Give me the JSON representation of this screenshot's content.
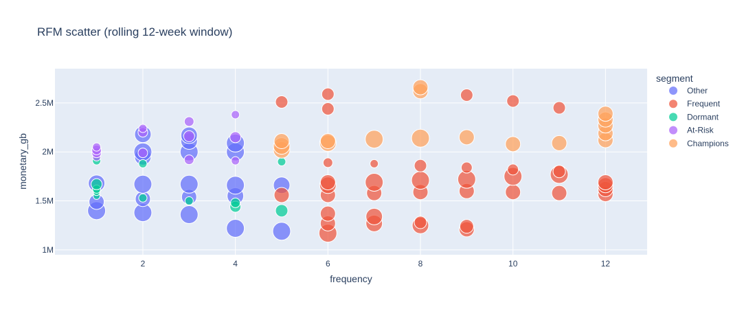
{
  "chart_data": {
    "type": "scatter",
    "title": "RFM scatter (rolling 12-week window)",
    "xlabel": "frequency",
    "ylabel": "monetary_gb",
    "xlim": [
      0.1,
      12.9
    ],
    "ylim": [
      950000,
      2850000
    ],
    "xticks": [
      2,
      4,
      6,
      8,
      10,
      12
    ],
    "xtick_labels": [
      "2",
      "4",
      "6",
      "8",
      "10",
      "12"
    ],
    "yticks": [
      1000000,
      1500000,
      2000000,
      2500000
    ],
    "ytick_labels": [
      "1M",
      "1.5M",
      "2M",
      "2.5M"
    ],
    "grid": true,
    "legend": {
      "title": "segment",
      "placement": "right"
    },
    "series": [
      {
        "name": "Other",
        "color": "#636efa",
        "points": [
          {
            "x": 1,
            "y": 1400000,
            "size": 13
          },
          {
            "x": 1,
            "y": 1490000,
            "size": 11
          },
          {
            "x": 1,
            "y": 1680000,
            "size": 12
          },
          {
            "x": 2,
            "y": 1380000,
            "size": 13
          },
          {
            "x": 2,
            "y": 1520000,
            "size": 11
          },
          {
            "x": 2,
            "y": 1670000,
            "size": 13
          },
          {
            "x": 2,
            "y": 1950000,
            "size": 12
          },
          {
            "x": 2,
            "y": 2000000,
            "size": 13
          },
          {
            "x": 2,
            "y": 2180000,
            "size": 12
          },
          {
            "x": 3,
            "y": 1360000,
            "size": 13
          },
          {
            "x": 3,
            "y": 1540000,
            "size": 11
          },
          {
            "x": 3,
            "y": 1670000,
            "size": 13
          },
          {
            "x": 3,
            "y": 2000000,
            "size": 13
          },
          {
            "x": 3,
            "y": 2110000,
            "size": 12
          },
          {
            "x": 3,
            "y": 2170000,
            "size": 12
          },
          {
            "x": 4,
            "y": 1220000,
            "size": 13
          },
          {
            "x": 4,
            "y": 1550000,
            "size": 12
          },
          {
            "x": 4,
            "y": 1660000,
            "size": 13
          },
          {
            "x": 4,
            "y": 2000000,
            "size": 13
          },
          {
            "x": 4,
            "y": 2090000,
            "size": 13
          },
          {
            "x": 5,
            "y": 1190000,
            "size": 13
          },
          {
            "x": 5,
            "y": 1660000,
            "size": 12
          }
        ]
      },
      {
        "name": "Frequent",
        "color": "#ef553b",
        "points": [
          {
            "x": 5,
            "y": 1560000,
            "size": 11
          },
          {
            "x": 5,
            "y": 2510000,
            "size": 9
          },
          {
            "x": 6,
            "y": 1170000,
            "size": 13
          },
          {
            "x": 6,
            "y": 1270000,
            "size": 11
          },
          {
            "x": 6,
            "y": 1370000,
            "size": 11
          },
          {
            "x": 6,
            "y": 1560000,
            "size": 11
          },
          {
            "x": 6,
            "y": 1660000,
            "size": 12
          },
          {
            "x": 6,
            "y": 1690000,
            "size": 11
          },
          {
            "x": 6,
            "y": 1890000,
            "size": 7
          },
          {
            "x": 6,
            "y": 2440000,
            "size": 9
          },
          {
            "x": 6,
            "y": 2590000,
            "size": 9
          },
          {
            "x": 7,
            "y": 1270000,
            "size": 12
          },
          {
            "x": 7,
            "y": 1340000,
            "size": 12
          },
          {
            "x": 7,
            "y": 1580000,
            "size": 11
          },
          {
            "x": 7,
            "y": 1690000,
            "size": 13
          },
          {
            "x": 7,
            "y": 1880000,
            "size": 6
          },
          {
            "x": 8,
            "y": 1250000,
            "size": 12
          },
          {
            "x": 8,
            "y": 1280000,
            "size": 9
          },
          {
            "x": 8,
            "y": 1590000,
            "size": 11
          },
          {
            "x": 8,
            "y": 1710000,
            "size": 13
          },
          {
            "x": 8,
            "y": 1860000,
            "size": 9
          },
          {
            "x": 9,
            "y": 1210000,
            "size": 11
          },
          {
            "x": 9,
            "y": 1240000,
            "size": 10
          },
          {
            "x": 9,
            "y": 1600000,
            "size": 11
          },
          {
            "x": 9,
            "y": 1720000,
            "size": 13
          },
          {
            "x": 9,
            "y": 1840000,
            "size": 8
          },
          {
            "x": 9,
            "y": 2580000,
            "size": 9
          },
          {
            "x": 10,
            "y": 1590000,
            "size": 11
          },
          {
            "x": 10,
            "y": 1750000,
            "size": 13
          },
          {
            "x": 10,
            "y": 1820000,
            "size": 8
          },
          {
            "x": 10,
            "y": 2520000,
            "size": 9
          },
          {
            "x": 11,
            "y": 1580000,
            "size": 11
          },
          {
            "x": 11,
            "y": 1770000,
            "size": 13
          },
          {
            "x": 11,
            "y": 1800000,
            "size": 9
          },
          {
            "x": 11,
            "y": 2450000,
            "size": 9
          },
          {
            "x": 12,
            "y": 1570000,
            "size": 11
          },
          {
            "x": 12,
            "y": 1620000,
            "size": 11
          },
          {
            "x": 12,
            "y": 1660000,
            "size": 11
          },
          {
            "x": 12,
            "y": 1690000,
            "size": 11
          }
        ]
      },
      {
        "name": "Dormant",
        "color": "#00cc96",
        "points": [
          {
            "x": 1,
            "y": 1550000,
            "size": 5
          },
          {
            "x": 1,
            "y": 1590000,
            "size": 5
          },
          {
            "x": 1,
            "y": 1620000,
            "size": 6
          },
          {
            "x": 1,
            "y": 1670000,
            "size": 8
          },
          {
            "x": 1,
            "y": 1910000,
            "size": 6
          },
          {
            "x": 2,
            "y": 1530000,
            "size": 6
          },
          {
            "x": 2,
            "y": 1880000,
            "size": 6
          },
          {
            "x": 3,
            "y": 1500000,
            "size": 6
          },
          {
            "x": 4,
            "y": 1440000,
            "size": 8
          },
          {
            "x": 4,
            "y": 1480000,
            "size": 7
          },
          {
            "x": 5,
            "y": 1400000,
            "size": 9
          },
          {
            "x": 5,
            "y": 1900000,
            "size": 6
          }
        ]
      },
      {
        "name": "At-Risk",
        "color": "#ab63fa",
        "points": [
          {
            "x": 1,
            "y": 1950000,
            "size": 6
          },
          {
            "x": 1,
            "y": 1990000,
            "size": 7
          },
          {
            "x": 1,
            "y": 2020000,
            "size": 7
          },
          {
            "x": 1,
            "y": 2050000,
            "size": 6
          },
          {
            "x": 2,
            "y": 1990000,
            "size": 7
          },
          {
            "x": 2,
            "y": 2200000,
            "size": 7
          },
          {
            "x": 2,
            "y": 2240000,
            "size": 6
          },
          {
            "x": 3,
            "y": 1920000,
            "size": 7
          },
          {
            "x": 3,
            "y": 2160000,
            "size": 8
          },
          {
            "x": 3,
            "y": 2310000,
            "size": 7
          },
          {
            "x": 4,
            "y": 1910000,
            "size": 6
          },
          {
            "x": 4,
            "y": 2150000,
            "size": 8
          },
          {
            "x": 4,
            "y": 2380000,
            "size": 6
          }
        ]
      },
      {
        "name": "Champions",
        "color": "#ffa15a",
        "points": [
          {
            "x": 5,
            "y": 2020000,
            "size": 12
          },
          {
            "x": 5,
            "y": 2060000,
            "size": 12
          },
          {
            "x": 5,
            "y": 2110000,
            "size": 11
          },
          {
            "x": 6,
            "y": 2090000,
            "size": 12
          },
          {
            "x": 6,
            "y": 2110000,
            "size": 11
          },
          {
            "x": 7,
            "y": 2130000,
            "size": 13
          },
          {
            "x": 8,
            "y": 2140000,
            "size": 13
          },
          {
            "x": 8,
            "y": 2620000,
            "size": 11
          },
          {
            "x": 8,
            "y": 2660000,
            "size": 11
          },
          {
            "x": 9,
            "y": 2150000,
            "size": 11
          },
          {
            "x": 10,
            "y": 2080000,
            "size": 11
          },
          {
            "x": 11,
            "y": 2090000,
            "size": 11
          },
          {
            "x": 12,
            "y": 2120000,
            "size": 11
          },
          {
            "x": 12,
            "y": 2190000,
            "size": 11
          },
          {
            "x": 12,
            "y": 2270000,
            "size": 11
          },
          {
            "x": 12,
            "y": 2330000,
            "size": 11
          },
          {
            "x": 12,
            "y": 2390000,
            "size": 11
          }
        ]
      }
    ]
  }
}
